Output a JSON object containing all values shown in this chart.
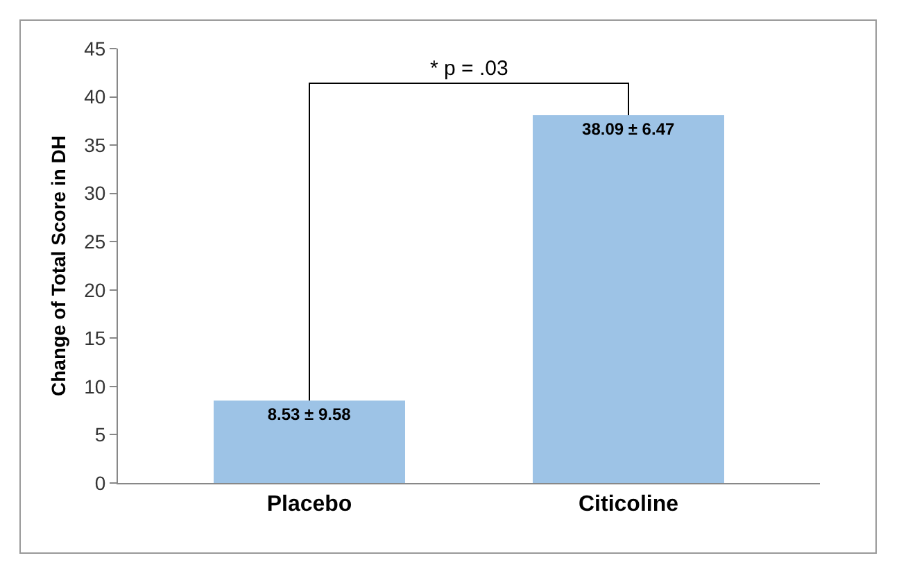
{
  "chart_data": {
    "type": "bar",
    "ylabel": "Change of Total Score in DH",
    "categories": [
      "Placebo",
      "Citicoline"
    ],
    "values": [
      8.53,
      38.09
    ],
    "color": "#9dc3e6",
    "value_labels": [
      "8.53 ± 9.58",
      "38.09 ± 6.47"
    ],
    "ylim": [
      0,
      45
    ],
    "yticks": [
      0,
      5,
      10,
      15,
      20,
      25,
      30,
      35,
      40,
      45
    ],
    "grid": false,
    "legend": false,
    "annotations": [
      "* p = .03"
    ]
  }
}
